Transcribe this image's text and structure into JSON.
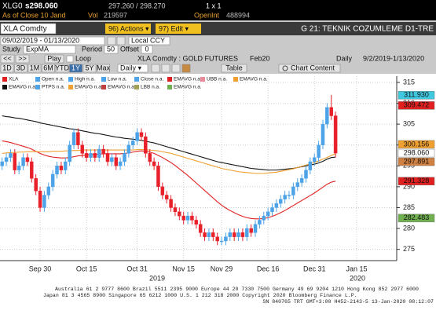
{
  "header": {
    "ticker": "XLG0",
    "price": "s298.060",
    "bid_ask": "297.260 / 298.270",
    "size": "1 x 1",
    "as_of": "As of Close 10 Jand",
    "vol_label": "Vol",
    "vol": "219597",
    "oi_label": "OpenInt",
    "oi": "488994"
  },
  "toolbar": {
    "security": "XLA Comdty",
    "actions": "96) Actions ▾",
    "edit": "97) Edit ▾",
    "page": "G 21: TEKNIK COZUMLEME D1-TRE",
    "date_range": "09/02/2019 - 01/13/2020",
    "currency": "Local CCY",
    "study_label": "Study",
    "study": "ExpMA",
    "period_label": "Period",
    "period": "50",
    "offset_label": "Offset",
    "offset": "0",
    "nav": [
      "<<",
      ">>",
      "Play"
    ],
    "loop": "Loop",
    "chart_name": "XLA Comdty : GOLD FUTURES",
    "contract": "Feb20",
    "frequency": "Daily",
    "range": "9/2/2019-1/13/2020",
    "periods": [
      "1D",
      "3D",
      "1M",
      "6M",
      "YTD",
      "1Y",
      "5Y",
      "Max"
    ],
    "freq_select": "Daily ▾",
    "table": "Table",
    "chart_content": "Chart Content"
  },
  "legend": [
    [
      {
        "text": "XLA",
        "color": "#e02020"
      },
      {
        "text": "Open n.a.",
        "color": "#4da3e8"
      },
      {
        "text": "High n.a.",
        "color": "#4da3e8"
      },
      {
        "text": "Low n.a.",
        "color": "#4da3e8"
      },
      {
        "text": "Close n.a.",
        "color": "#4da3e8"
      },
      {
        "text": "EMAVG n.a.",
        "color": "#e02020"
      },
      {
        "text": "UBB n.a.",
        "color": "#e88a9a"
      },
      {
        "text": "EMAVG n.a.",
        "color": "#f0a030"
      }
    ],
    [
      {
        "text": "EMAVG n.a.",
        "color": "#111111"
      },
      {
        "text": "PTPS n.a.",
        "color": "#4da3e8"
      },
      {
        "text": "EMAVG n.a.",
        "color": "#f0a030"
      },
      {
        "text": "EMAVG n.a.",
        "color": "#c04040"
      },
      {
        "text": "LBB n.a.",
        "color": "#a0a050"
      },
      {
        "text": "EMAVG n.a.",
        "color": "#70b050"
      }
    ]
  ],
  "chart_data": {
    "type": "candlestick",
    "categories": [
      null,
      null,
      null,
      null,
      null,
      null,
      null,
      null,
      null,
      "Sep 30",
      null,
      null,
      null,
      null,
      null,
      null,
      null,
      null,
      null,
      null,
      "Oct 15",
      null,
      null,
      null,
      null,
      null,
      null,
      null,
      null,
      null,
      null,
      null,
      "Oct 31",
      null,
      null,
      null,
      null,
      null,
      null,
      null,
      null,
      null,
      null,
      "Nov 15",
      null,
      null,
      null,
      null,
      null,
      null,
      null,
      null,
      "Nov 29",
      null,
      null,
      null,
      null,
      null,
      null,
      null,
      null,
      null,
      null,
      "Dec 16",
      null,
      null,
      null,
      null,
      null,
      null,
      null,
      null,
      null,
      null,
      "Dec 31",
      null,
      null,
      null,
      null,
      null,
      null,
      null,
      null,
      null,
      "Jan 15",
      null,
      null,
      null,
      null,
      null,
      null,
      null,
      null,
      null
    ],
    "open": [
      295,
      296,
      297,
      298,
      294,
      295,
      297,
      296,
      292,
      289,
      285,
      288,
      290,
      293,
      295,
      294,
      296,
      300,
      303,
      300,
      298,
      297,
      298,
      297,
      299,
      298,
      296,
      297,
      295,
      296,
      298,
      300,
      301,
      303,
      302,
      298,
      296,
      295,
      290,
      288,
      287,
      285,
      284,
      283,
      282,
      283,
      282,
      281,
      279,
      278,
      279,
      278,
      277,
      277,
      278,
      279,
      278,
      279,
      278,
      280,
      279,
      281,
      282,
      283,
      284,
      285,
      286,
      287,
      288,
      288,
      290,
      291,
      292,
      294,
      296,
      297,
      300,
      305,
      309,
      307,
      null,
      null,
      null,
      null,
      null,
      null,
      null,
      null,
      null,
      null,
      null,
      null,
      null,
      null
    ],
    "high": [
      297,
      298,
      299,
      299,
      296,
      298,
      298,
      297,
      293,
      290,
      289,
      291,
      294,
      296,
      296,
      297,
      301,
      304,
      304,
      301,
      299,
      299,
      299,
      300,
      300,
      299,
      298,
      298,
      297,
      299,
      301,
      302,
      304,
      304,
      303,
      299,
      297,
      296,
      291,
      289,
      288,
      286,
      285,
      284,
      284,
      284,
      283,
      282,
      280,
      280,
      280,
      279,
      278,
      279,
      280,
      280,
      280,
      280,
      281,
      281,
      282,
      283,
      284,
      285,
      286,
      287,
      288,
      289,
      289,
      291,
      292,
      293,
      295,
      297,
      298,
      301,
      306,
      310,
      312,
      308,
      null,
      null,
      null,
      null,
      null,
      null,
      null,
      null,
      null,
      null,
      null,
      null,
      null,
      null
    ],
    "low": [
      294,
      295,
      296,
      293,
      293,
      294,
      295,
      291,
      288,
      284,
      284,
      287,
      289,
      292,
      293,
      293,
      295,
      299,
      299,
      297,
      296,
      296,
      296,
      296,
      297,
      295,
      295,
      294,
      294,
      295,
      297,
      299,
      300,
      301,
      297,
      295,
      294,
      289,
      287,
      286,
      284,
      283,
      282,
      281,
      281,
      281,
      280,
      278,
      277,
      277,
      277,
      276,
      276,
      276,
      277,
      277,
      277,
      277,
      277,
      278,
      278,
      280,
      281,
      282,
      283,
      284,
      285,
      286,
      287,
      287,
      289,
      290,
      291,
      293,
      295,
      296,
      299,
      304,
      306,
      297,
      null,
      null,
      null,
      null,
      null,
      null,
      null,
      null,
      null,
      null,
      null,
      null,
      null,
      null
    ],
    "close": [
      296,
      297,
      298,
      294,
      295,
      297,
      296,
      292,
      289,
      285,
      288,
      290,
      293,
      295,
      294,
      296,
      300,
      303,
      300,
      298,
      297,
      298,
      297,
      299,
      298,
      296,
      297,
      295,
      296,
      298,
      300,
      301,
      303,
      302,
      298,
      296,
      295,
      290,
      288,
      287,
      285,
      284,
      283,
      282,
      283,
      282,
      281,
      279,
      278,
      279,
      278,
      277,
      277,
      278,
      279,
      278,
      279,
      278,
      280,
      279,
      281,
      282,
      283,
      284,
      285,
      286,
      287,
      288,
      288,
      290,
      291,
      292,
      294,
      296,
      297,
      300,
      305,
      309,
      307,
      298.06,
      null,
      null,
      null,
      null,
      null,
      null,
      null,
      null,
      null,
      null,
      null,
      null,
      null,
      null
    ],
    "up_color": "#4da3e8",
    "down_color": "#e8202a",
    "series": [
      {
        "color": "#111111",
        "values": [
          307,
          306.8,
          306.7,
          306.5,
          306.4,
          306.2,
          306,
          305.8,
          305.6,
          305.3,
          305.1,
          304.9,
          304.7,
          304.5,
          304.3,
          304.1,
          303.9,
          303.8,
          303.6,
          303.4,
          303.2,
          303,
          302.8,
          302.7,
          302.5,
          302.3,
          302.1,
          301.9,
          301.8,
          301.6,
          301.5,
          301.4,
          301.3,
          301.1,
          300.9,
          300.7,
          300.5,
          300.2,
          299.9,
          299.6,
          299.3,
          299,
          298.7,
          298.4,
          298.1,
          297.8,
          297.5,
          297.2,
          296.9,
          296.6,
          296.3,
          296,
          295.8,
          295.6,
          295.4,
          295.2,
          295,
          294.8,
          294.6,
          294.4,
          294.3,
          294.2,
          294.1,
          294,
          294,
          294,
          294.1,
          294.2,
          294.3,
          294.4,
          294.6,
          294.8,
          295,
          295.2,
          295.4,
          295.7,
          296.1,
          296.6,
          297,
          297.1,
          null,
          null,
          null,
          null,
          null,
          null,
          null,
          null,
          null,
          null,
          null,
          null,
          null,
          null
        ]
      },
      {
        "color": "#e02020",
        "values": [
          301,
          300.8,
          300.6,
          300.3,
          300,
          299.7,
          299.4,
          299,
          298.5,
          298,
          297.6,
          297.3,
          297.1,
          297,
          296.9,
          296.9,
          297,
          297.2,
          297.4,
          297.5,
          297.6,
          297.7,
          297.8,
          297.8,
          297.9,
          297.9,
          297.9,
          297.9,
          297.9,
          298,
          298.1,
          298.3,
          298.5,
          298.6,
          298.5,
          298.3,
          298,
          297.5,
          297,
          296.4,
          295.8,
          295.1,
          294.3,
          293.5,
          292.7,
          291.8,
          290.9,
          290,
          289.1,
          288.2,
          287.3,
          286.4,
          285.6,
          284.9,
          284.3,
          283.8,
          283.3,
          282.9,
          282.6,
          282.4,
          282.3,
          282.3,
          282.4,
          282.6,
          282.9,
          283.3,
          283.8,
          284.3,
          284.9,
          285.5,
          286.1,
          286.7,
          287.3,
          287.9,
          288.5,
          289.2,
          289.9,
          290.6,
          291.1,
          291.328,
          null,
          null,
          null,
          null,
          null,
          null,
          null,
          null,
          null,
          null,
          null,
          null,
          null,
          null
        ]
      },
      {
        "color": "#f0a030",
        "values": [
          298,
          298.1,
          298.2,
          298.2,
          298.3,
          298.3,
          298.4,
          298.4,
          298.4,
          298.4,
          298.4,
          298.4,
          298.5,
          298.5,
          298.5,
          298.6,
          298.6,
          298.7,
          298.7,
          298.8,
          298.8,
          298.8,
          298.8,
          298.8,
          298.8,
          298.8,
          298.8,
          298.8,
          298.8,
          298.8,
          298.8,
          298.8,
          298.9,
          298.9,
          298.9,
          298.8,
          298.7,
          298.6,
          298.4,
          298.2,
          298,
          297.7,
          297.4,
          297.1,
          296.8,
          296.5,
          296.2,
          295.9,
          295.6,
          295.3,
          295,
          294.7,
          294.4,
          294.2,
          294,
          293.8,
          293.6,
          293.5,
          293.4,
          293.3,
          293.2,
          293.2,
          293.2,
          293.3,
          293.4,
          293.5,
          293.7,
          293.9,
          294.1,
          294.3,
          294.6,
          294.9,
          295.2,
          295.5,
          295.8,
          296.2,
          296.6,
          297,
          297.5,
          297.891,
          null,
          null,
          null,
          null,
          null,
          null,
          null,
          null,
          null,
          null,
          null,
          null,
          null,
          null
        ]
      }
    ],
    "ylim": [
      272.3,
      316.5
    ],
    "yticks": [
      275,
      280,
      285,
      290,
      295,
      300,
      305,
      310,
      315
    ],
    "grid": true,
    "price_labels": [
      {
        "value": 311.93,
        "label": "311.930",
        "color": "#40c8e0"
      },
      {
        "value": 309.472,
        "label": "309.472",
        "color": "#e02020"
      },
      {
        "value": 300.156,
        "label": "300.156",
        "color": "#f0a030"
      },
      {
        "value": 298.06,
        "label": "298.060",
        "color": "#ffffff"
      },
      {
        "value": 297.891,
        "label": "297.891",
        "color": "#d08040"
      },
      {
        "value": 291.328,
        "label": "291.328",
        "color": "#e02020"
      },
      {
        "value": 282.483,
        "label": "282.483",
        "color": "#70b050"
      }
    ],
    "year_labels": [
      "2019",
      "2020"
    ]
  },
  "footer": [
    "Australia 61 2 9777 8600 Brazil 5511 2395 9000 Europe 44 20 7330 7500 Germany 49 69 9204 1210 Hong Kong 852 2977 6000",
    "Japan 81 3 4565 8900  Singapore 65 6212 1000  U.S. 1 212 318 2000  Copyright 2020 Bloomberg Finance L.P.",
    "SN 840765 TRT GMT+3:00 H452-2143-5 13-Jan-2020 08:12:07"
  ]
}
